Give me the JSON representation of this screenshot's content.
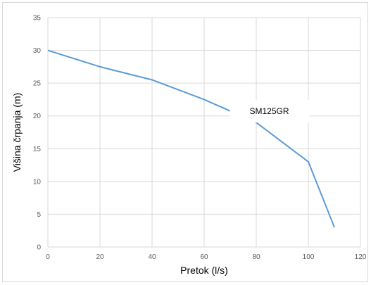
{
  "chart_data": {
    "type": "line",
    "title": "",
    "xlabel": "Pretok (l/s)",
    "ylabel": "Višina črpanja (m)",
    "xlim": [
      0,
      120
    ],
    "ylim": [
      0,
      35
    ],
    "x_ticks": [
      0,
      20,
      40,
      60,
      80,
      100,
      120
    ],
    "y_ticks": [
      0,
      5,
      10,
      15,
      20,
      25,
      30,
      35
    ],
    "grid": true,
    "legend": "none",
    "series": [
      {
        "name": "SM125GR",
        "color": "#5b9bd5",
        "x": [
          0,
          20,
          40,
          60,
          80,
          100,
          110
        ],
        "y": [
          30,
          27.5,
          25.5,
          22.5,
          19,
          13,
          3
        ]
      }
    ],
    "annotations": [
      {
        "text": "SM125GR",
        "x": 85,
        "y": 20.7
      }
    ]
  }
}
